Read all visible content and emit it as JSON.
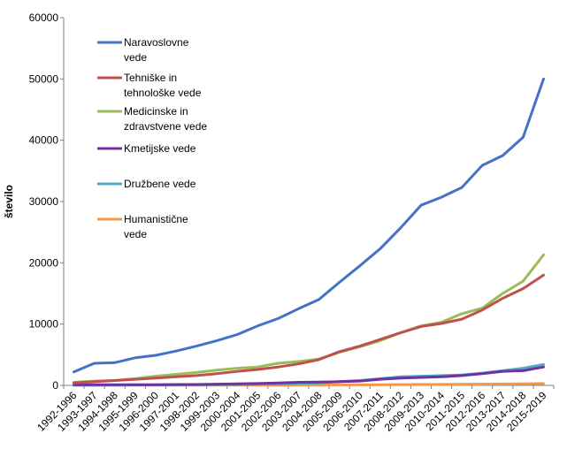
{
  "chart_data": {
    "type": "line",
    "title": "",
    "xlabel": "",
    "ylabel": "število",
    "ylim": [
      0,
      60000
    ],
    "yticks": [
      0,
      10000,
      20000,
      30000,
      40000,
      50000,
      60000
    ],
    "grid": false,
    "legend_placement": "top-left",
    "categories": [
      "1992-1996",
      "1993-1997",
      "1994-1998",
      "1995-1999",
      "1996-2000",
      "1997-2001",
      "1998-2002",
      "1999-2003",
      "2000-2004",
      "2001-2005",
      "2002-2006",
      "2003-2007",
      "2004-2008",
      "2005-2009",
      "2006-2010",
      "2007-2011",
      "2008-2012",
      "2009-2013",
      "2010-2014",
      "2011-2015",
      "2012-2016",
      "2013-2017",
      "2014-2018",
      "2015-2019"
    ],
    "series": [
      {
        "name": "Naravoslovne vede",
        "legend_lines": [
          "Naravoslovne",
          "vede"
        ],
        "color": "#4472C4",
        "values": [
          2200,
          3600,
          3700,
          4500,
          4900,
          5600,
          6400,
          7300,
          8300,
          9700,
          10900,
          12500,
          14000,
          16800,
          19500,
          22300,
          25700,
          29400,
          30700,
          32300,
          35900,
          37500,
          40500,
          50000
        ]
      },
      {
        "name": "Tehniške in tehnološke vede",
        "legend_lines": [
          "Tehniške in",
          "tehnološke vede"
        ],
        "color": "#C0504D",
        "values": [
          400,
          600,
          800,
          1000,
          1200,
          1400,
          1600,
          1900,
          2300,
          2600,
          3000,
          3500,
          4200,
          5500,
          6400,
          7500,
          8600,
          9600,
          10100,
          10800,
          12300,
          14200,
          15800,
          18000
        ]
      },
      {
        "name": "Medicinske in zdravstvene vede",
        "legend_lines": [
          "Medicinske in",
          "zdravstvene vede"
        ],
        "color": "#9BBB59",
        "values": [
          500,
          700,
          800,
          1100,
          1500,
          1800,
          2100,
          2500,
          2800,
          3000,
          3600,
          3900,
          4300,
          5400,
          6300,
          7300,
          8600,
          9700,
          10300,
          11700,
          12600,
          15000,
          17000,
          21300
        ]
      },
      {
        "name": "Kmetijske vede",
        "legend_lines": [
          "Kmetijske vede"
        ],
        "color": "#7030A0",
        "values": [
          100,
          100,
          100,
          100,
          100,
          150,
          150,
          200,
          250,
          300,
          400,
          500,
          550,
          600,
          700,
          1000,
          1200,
          1300,
          1400,
          1600,
          1900,
          2300,
          2400,
          3000
        ]
      },
      {
        "name": "Družbene vede",
        "legend_lines": [
          "Družbene vede"
        ],
        "color": "#4BACC6",
        "values": [
          50,
          50,
          60,
          70,
          80,
          90,
          100,
          120,
          150,
          200,
          250,
          300,
          400,
          600,
          800,
          1100,
          1400,
          1500,
          1600,
          1700,
          2000,
          2400,
          2800,
          3400
        ]
      },
      {
        "name": "Humanistične vede",
        "legend_lines": [
          "Humanistične",
          "vede"
        ],
        "color": "#F79646",
        "values": [
          20,
          20,
          20,
          25,
          25,
          30,
          30,
          35,
          40,
          45,
          50,
          60,
          70,
          80,
          90,
          110,
          130,
          150,
          160,
          180,
          200,
          230,
          260,
          300
        ]
      }
    ]
  }
}
